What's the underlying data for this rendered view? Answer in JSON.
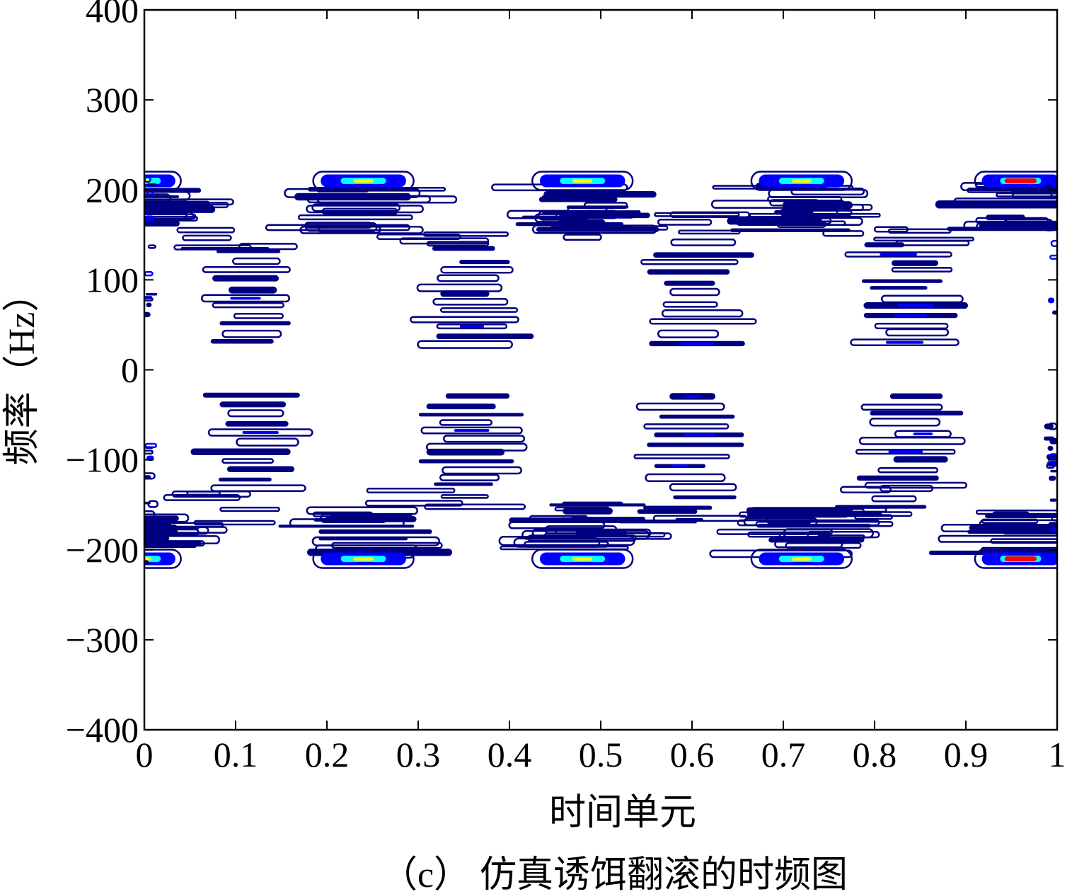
{
  "chart_data": {
    "type": "heatmap",
    "subtype": "contour",
    "title": "",
    "xlabel": "时间单元",
    "ylabel": "频率（Hz）",
    "caption": "（c） 仿真诱饵翻滚的时频图",
    "xlim": [
      0,
      1
    ],
    "ylim": [
      -400,
      400
    ],
    "x_ticks": [
      0,
      0.1,
      0.2,
      0.3,
      0.4,
      0.5,
      0.6,
      0.7,
      0.8,
      0.9,
      1
    ],
    "x_tick_labels": [
      "0",
      "0.1",
      "0.2",
      "0.3",
      "0.4",
      "0.5",
      "0.6",
      "0.7",
      "0.8",
      "0.9",
      "1"
    ],
    "y_ticks": [
      400,
      300,
      200,
      100,
      0,
      -100,
      -200,
      -300,
      -400
    ],
    "y_tick_labels": [
      "400",
      "300",
      "200",
      "100",
      "0",
      "−100",
      "−200",
      "−300",
      "−400"
    ],
    "grid": false,
    "legend": "none",
    "colormap": [
      "#000080",
      "#0000ff",
      "#00ffff",
      "#ffff00",
      "#ff0000"
    ],
    "high_energy_centers": [
      {
        "t": 0.0,
        "f": 210
      },
      {
        "t": 0.0,
        "f": -210
      },
      {
        "t": 0.24,
        "f": 210
      },
      {
        "t": 0.24,
        "f": -210
      },
      {
        "t": 0.48,
        "f": 210
      },
      {
        "t": 0.48,
        "f": -210
      },
      {
        "t": 0.72,
        "f": 210
      },
      {
        "t": 0.72,
        "f": -210
      },
      {
        "t": 0.96,
        "f": 210
      },
      {
        "t": 0.96,
        "f": -210
      }
    ],
    "inner_clusters": [
      {
        "t": 0.12,
        "f_range": [
          30,
          130
        ]
      },
      {
        "t": 0.12,
        "f_range": [
          -130,
          -30
        ]
      },
      {
        "t": 0.36,
        "f_range": [
          30,
          120
        ]
      },
      {
        "t": 0.36,
        "f_range": [
          -120,
          -30
        ]
      },
      {
        "t": 0.6,
        "f_range": [
          30,
          140
        ]
      },
      {
        "t": 0.6,
        "f_range": [
          -140,
          -30
        ]
      },
      {
        "t": 0.84,
        "f_range": [
          30,
          130
        ]
      },
      {
        "t": 0.84,
        "f_range": [
          -130,
          -30
        ]
      }
    ]
  }
}
